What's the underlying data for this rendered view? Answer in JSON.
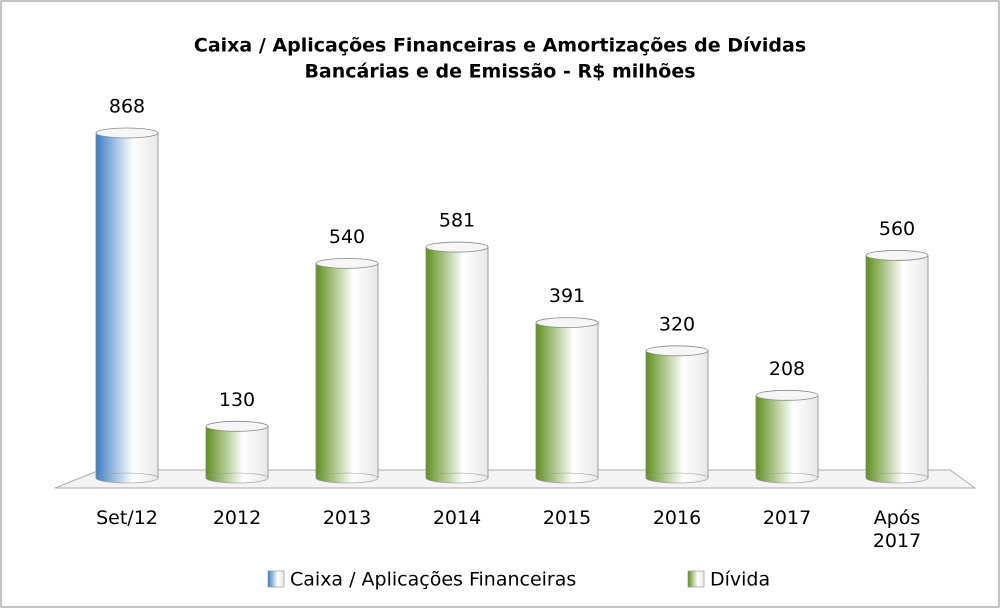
{
  "chart_data": {
    "type": "bar",
    "title": [
      "Caixa / Aplicações Financeiras e Amortizações de Dívidas",
      "Bancárias e de Emissão  - R$ milhões"
    ],
    "categories": [
      "Set/12",
      "2012",
      "2013",
      "2014",
      "2015",
      "2016",
      "2017",
      "Após 2017"
    ],
    "series": [
      {
        "name": "Caixa / Aplicações Financeiras",
        "color": "#3b7fc4",
        "values": [
          868,
          null,
          null,
          null,
          null,
          null,
          null,
          null
        ]
      },
      {
        "name": "Dívida",
        "color": "#5f8f1e",
        "values": [
          null,
          130,
          540,
          581,
          391,
          320,
          208,
          560
        ]
      }
    ],
    "legend": "bottom"
  }
}
